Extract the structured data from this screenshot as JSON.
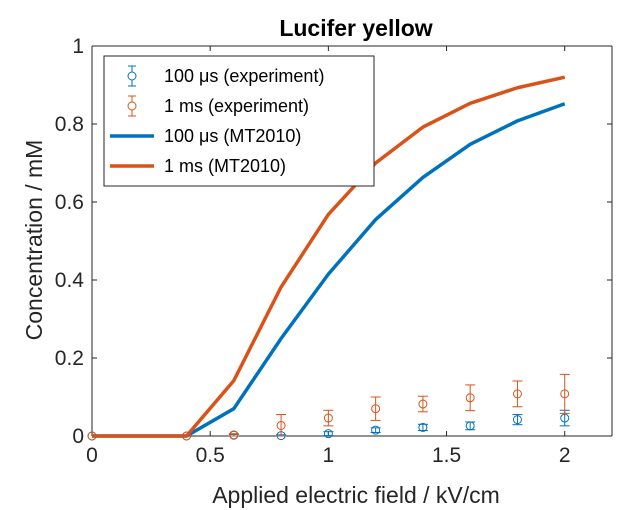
{
  "chart_data": {
    "type": "line",
    "title": "Lucifer yellow",
    "xlabel": "Applied electric field / kV/cm",
    "ylabel": "Concentration / mM",
    "xlim": [
      0,
      2.2
    ],
    "ylim": [
      0,
      1
    ],
    "x_ticks": [
      0,
      0.5,
      1,
      1.5,
      2
    ],
    "x_tick_labels": [
      "0",
      "0.5",
      "1",
      "1.5",
      "2"
    ],
    "y_ticks": [
      0,
      0.2,
      0.4,
      0.6,
      0.8,
      1
    ],
    "y_tick_labels": [
      "0",
      "0.2",
      "0.4",
      "0.6",
      "0.8",
      "1"
    ],
    "grid": false,
    "legend_position": "top-left",
    "series": [
      {
        "name": "100 μs (experiment)",
        "kind": "errorbar",
        "color": "#0072BD",
        "x": [
          0,
          0.4,
          0.6,
          0.8,
          1.0,
          1.2,
          1.4,
          1.6,
          1.8,
          2.0
        ],
        "y": [
          0,
          0,
          0.002,
          0.001,
          0.006,
          0.015,
          0.022,
          0.026,
          0.042,
          0.046
        ],
        "err": [
          0,
          0,
          0.002,
          0.002,
          0.005,
          0.006,
          0.008,
          0.01,
          0.013,
          0.02
        ]
      },
      {
        "name": "1 ms (experiment)",
        "kind": "errorbar",
        "color": "#D95319",
        "x": [
          0,
          0.4,
          0.6,
          0.8,
          1.0,
          1.2,
          1.4,
          1.6,
          1.8,
          2.0
        ],
        "y": [
          0,
          0,
          0.003,
          0.027,
          0.046,
          0.07,
          0.082,
          0.098,
          0.108,
          0.108
        ],
        "err": [
          0,
          0,
          0.003,
          0.028,
          0.02,
          0.03,
          0.02,
          0.033,
          0.033,
          0.05
        ]
      },
      {
        "name": "100 μs (MT2010)",
        "kind": "line",
        "color": "#0072BD",
        "x": [
          0,
          0.4,
          0.6,
          0.8,
          1.0,
          1.2,
          1.4,
          1.6,
          1.8,
          2.0
        ],
        "y": [
          0,
          0,
          0.07,
          0.25,
          0.415,
          0.555,
          0.663,
          0.748,
          0.808,
          0.852
        ]
      },
      {
        "name": "1 ms (MT2010)",
        "kind": "line",
        "color": "#D95319",
        "x": [
          0,
          0.4,
          0.6,
          0.8,
          1.0,
          1.2,
          1.4,
          1.6,
          1.8,
          2.0
        ],
        "y": [
          0,
          0,
          0.142,
          0.382,
          0.568,
          0.7,
          0.792,
          0.853,
          0.893,
          0.92
        ]
      }
    ]
  }
}
